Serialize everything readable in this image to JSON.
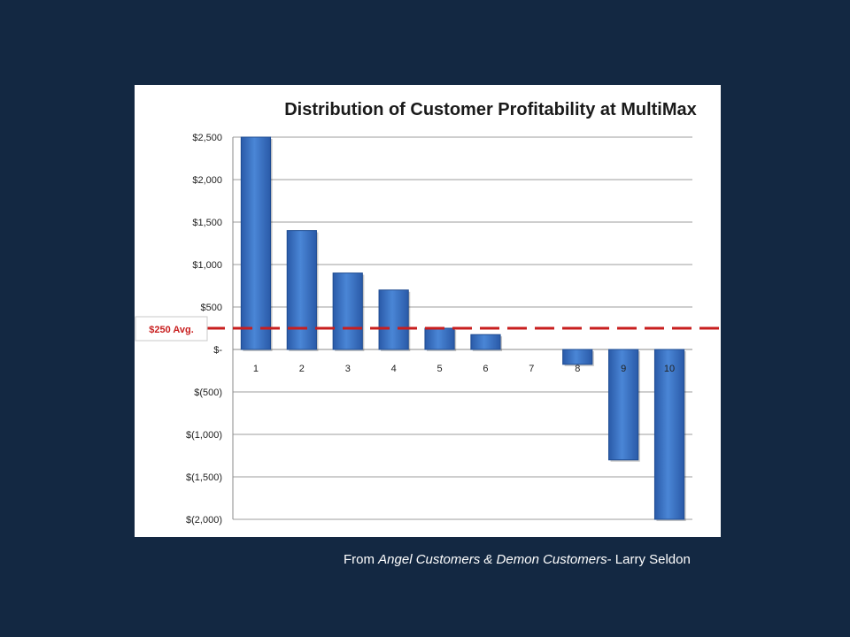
{
  "chart_data": {
    "type": "bar",
    "title": "Distribution of Customer Profitability at MultiMax",
    "xlabel": "",
    "ylabel": "",
    "categories": [
      "1",
      "2",
      "3",
      "4",
      "5",
      "6",
      "7",
      "8",
      "9",
      "10"
    ],
    "values": [
      2500,
      1400,
      900,
      700,
      250,
      175,
      0,
      -175,
      -1300,
      -2000
    ],
    "ylim": [
      -2000,
      2500
    ],
    "y_ticks": [
      2500,
      2000,
      1500,
      1000,
      500,
      0,
      -500,
      -1000,
      -1500,
      -2000
    ],
    "y_tick_labels": [
      "$2,500",
      "$2,000",
      "$1,500",
      "$1,000",
      "$500",
      "$-",
      "$(500)",
      "$(1,000)",
      "$(1,500)",
      "$(2,000)"
    ],
    "grid": true,
    "legend": "none",
    "bar_color": "#3b74c4",
    "average_line": {
      "value": 250,
      "label": "$250 Avg.",
      "color": "#c81e1e"
    }
  },
  "caption": {
    "prefix": "From ",
    "book_title": "Angel Customers & Demon Customers",
    "suffix": "- Larry Seldon"
  }
}
